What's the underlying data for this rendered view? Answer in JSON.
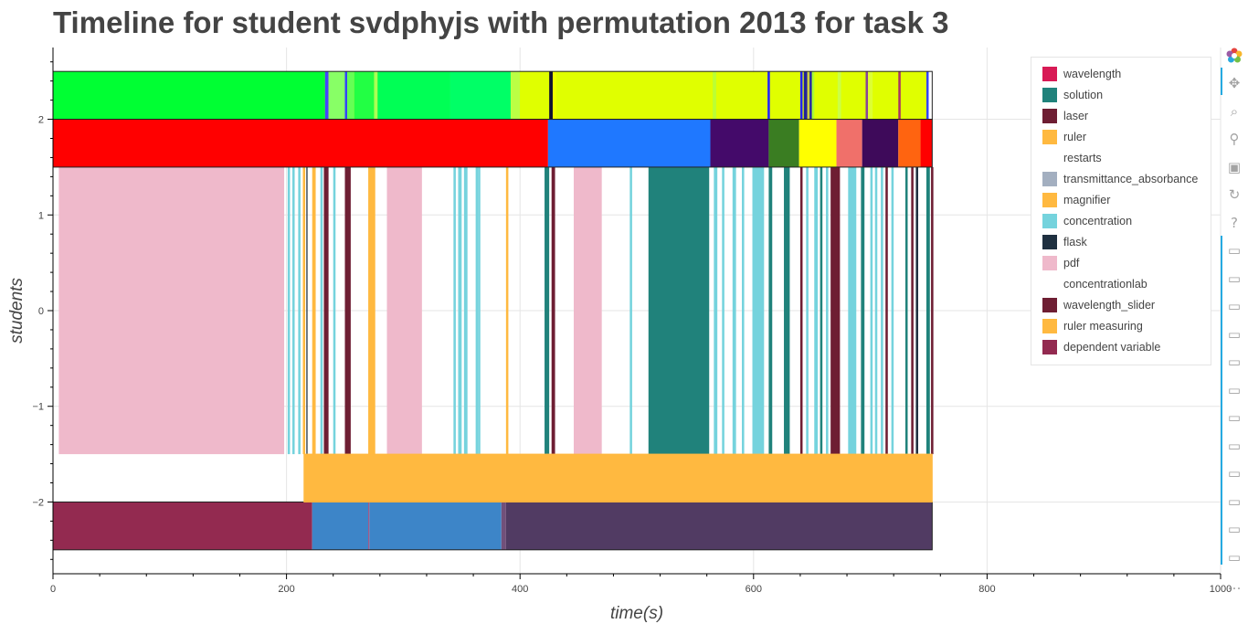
{
  "chart_data": {
    "type": "timeline",
    "title": "Timeline for student svdphyjs with permutation 2013 for task 3",
    "xlabel": "time(s)",
    "ylabel": "students",
    "xlim": [
      0,
      1000
    ],
    "ylim": [
      -2.75,
      2.75
    ],
    "xticks": [
      0,
      200,
      400,
      600,
      800,
      1000
    ],
    "xtick_labels": [
      "0",
      "200",
      "400",
      "600",
      "800",
      "1000"
    ],
    "yticks": [
      -2,
      -1,
      0,
      1,
      2
    ],
    "ytick_labels": [
      "−2",
      "−1",
      "0",
      "1",
      "2"
    ],
    "grid": true,
    "legend_position": "top-right",
    "tracks": [
      {
        "row": 2.25,
        "height": 0.5,
        "background": "#e0ff00",
        "segments": [
          [
            0,
            233,
            "#00ff33"
          ],
          [
            233,
            236,
            "#4444ff"
          ],
          [
            236,
            250,
            "#88ff66"
          ],
          [
            250,
            252,
            "#3344ff"
          ],
          [
            252,
            258,
            "#66ff55"
          ],
          [
            258,
            275,
            "#22ff44"
          ],
          [
            275,
            278,
            "#aaff55"
          ],
          [
            278,
            340,
            "#00ff55"
          ],
          [
            340,
            392,
            "#00ff66"
          ],
          [
            392,
            400,
            "#bbff44"
          ],
          [
            400,
            425,
            "#e0ff00"
          ],
          [
            425,
            428,
            "#111133"
          ],
          [
            428,
            431,
            "#eeff00"
          ],
          [
            565,
            568,
            "#bbff33"
          ],
          [
            612,
            614,
            "#2222ff"
          ],
          [
            640,
            642,
            "#2222ff"
          ],
          [
            643,
            646,
            "#222299"
          ],
          [
            646,
            648,
            "#cccc44"
          ],
          [
            648,
            650,
            "#2222aa"
          ],
          [
            650,
            652,
            "#aaff33"
          ],
          [
            672,
            675,
            "#ccff44"
          ],
          [
            696,
            698,
            "#884499"
          ],
          [
            698,
            702,
            "#ddff33"
          ],
          [
            724,
            726,
            "#aa3366"
          ],
          [
            748,
            750,
            "#3344ff"
          ]
        ]
      },
      {
        "row": 1.75,
        "height": 0.5,
        "segments": [
          [
            0,
            424,
            "#ff0000"
          ],
          [
            424,
            563,
            "#1f78ff"
          ],
          [
            563,
            613,
            "#440a6a"
          ],
          [
            613,
            639,
            "#3a7d22"
          ],
          [
            639,
            671,
            "#ffff00"
          ],
          [
            671,
            693,
            "#f0706a"
          ],
          [
            693,
            724,
            "#3e0a5a"
          ],
          [
            724,
            743,
            "#ff6410"
          ],
          [
            743,
            753,
            "#ff0000"
          ]
        ]
      },
      {
        "row": 0,
        "height": 3.0,
        "segments": [
          [
            5,
            198,
            "#efb9cb"
          ],
          [
            201,
            203,
            "#75d3dd"
          ],
          [
            205,
            207,
            "#75d3dd"
          ],
          [
            210,
            212,
            "#75d3dd"
          ],
          [
            214,
            216,
            "#ffb940"
          ],
          [
            217,
            218,
            "#1f3040"
          ],
          [
            222,
            225,
            "#ffb940"
          ],
          [
            229,
            231,
            "#75d3dd"
          ],
          [
            232,
            236,
            "#6e1e33"
          ],
          [
            240,
            242,
            "#75d3dd"
          ],
          [
            250,
            255,
            "#6e1e33"
          ],
          [
            270,
            276,
            "#ffb940"
          ],
          [
            286,
            316,
            "#efb9cb"
          ],
          [
            343,
            345,
            "#75d3dd"
          ],
          [
            347,
            350,
            "#75d3dd"
          ],
          [
            352,
            355,
            "#75d3dd"
          ],
          [
            362,
            364,
            "#75d3dd"
          ],
          [
            364,
            366,
            "#75d3dd"
          ],
          [
            388,
            390,
            "#ffb940"
          ],
          [
            421,
            425,
            "#20827b"
          ],
          [
            427,
            430,
            "#6e1e33"
          ],
          [
            446,
            470,
            "#efb9cb"
          ],
          [
            494,
            496,
            "#75d3dd"
          ],
          [
            510,
            562,
            "#20827b"
          ],
          [
            566,
            569,
            "#75d3dd"
          ],
          [
            573,
            575,
            "#75d3dd"
          ],
          [
            582,
            585,
            "#75d3dd"
          ],
          [
            590,
            592,
            "#75d3dd"
          ],
          [
            599,
            609,
            "#75d3dd"
          ],
          [
            613,
            616,
            "#20827b"
          ],
          [
            626,
            631,
            "#20827b"
          ],
          [
            640,
            642,
            "#6e1e33"
          ],
          [
            645,
            647,
            "#75d3dd"
          ],
          [
            652,
            655,
            "#75d3dd"
          ],
          [
            657,
            659,
            "#20827b"
          ],
          [
            662,
            664,
            "#75d3dd"
          ],
          [
            666,
            674,
            "#6e1e33"
          ],
          [
            681,
            688,
            "#75d3dd"
          ],
          [
            692,
            695,
            "#20827b"
          ],
          [
            700,
            702,
            "#75d3dd"
          ],
          [
            704,
            706,
            "#75d3dd"
          ],
          [
            709,
            711,
            "#75d3dd"
          ],
          [
            713,
            715,
            "#6e1e33"
          ],
          [
            718,
            720,
            "#75d3dd"
          ],
          [
            730,
            732,
            "#20827b"
          ],
          [
            735,
            737,
            "#6e1e33"
          ],
          [
            739,
            741,
            "#1f3040"
          ],
          [
            748,
            751,
            "#20827b"
          ],
          [
            752,
            754,
            "#6e1e33"
          ]
        ]
      },
      {
        "row": -1.75,
        "height": 0.5,
        "segments": [
          [
            215,
            753,
            "#ffb940"
          ]
        ]
      },
      {
        "row": -2.25,
        "height": 0.5,
        "segments": [
          [
            0,
            222,
            "#932a50"
          ],
          [
            222,
            270,
            "#3d85c8"
          ],
          [
            270,
            271,
            "#a05080"
          ],
          [
            271,
            384,
            "#3d85c8"
          ],
          [
            384,
            388,
            "#72507a"
          ],
          [
            388,
            753,
            "#513b63"
          ]
        ]
      }
    ],
    "legend": [
      {
        "label": "wavelength",
        "color": "#d81a55"
      },
      {
        "label": "solution",
        "color": "#20827b"
      },
      {
        "label": "laser",
        "color": "#6e1e33"
      },
      {
        "label": "ruler",
        "color": "#ffb940"
      },
      {
        "label": "restarts",
        "color": "#ffffff"
      },
      {
        "label": "transmittance_absorbance",
        "color": "#a3afc0"
      },
      {
        "label": "magnifier",
        "color": "#ffb940"
      },
      {
        "label": "concentration",
        "color": "#75d3dd"
      },
      {
        "label": "flask",
        "color": "#1f3040"
      },
      {
        "label": "pdf",
        "color": "#efb9cb"
      },
      {
        "label": "concentrationlab",
        "color": "#ffffff"
      },
      {
        "label": "wavelength_slider",
        "color": "#6e1e33"
      },
      {
        "label": "ruler measuring",
        "color": "#ffb940"
      },
      {
        "label": "dependent variable",
        "color": "#932a50"
      }
    ]
  },
  "toolbar": {
    "logo_icon": "bokeh-logo-icon",
    "tools": [
      {
        "icon": "pan-icon",
        "glyph": "✥"
      },
      {
        "icon": "box-zoom-icon",
        "glyph": "⌕"
      },
      {
        "icon": "wheel-zoom-icon",
        "glyph": "⚲"
      },
      {
        "icon": "save-icon",
        "glyph": "▣"
      },
      {
        "icon": "reset-icon",
        "glyph": "↻"
      },
      {
        "icon": "help-icon",
        "glyph": "?"
      },
      {
        "icon": "hover-icon",
        "glyph": "▭"
      },
      {
        "icon": "hover-icon",
        "glyph": "▭"
      },
      {
        "icon": "hover-icon",
        "glyph": "▭"
      },
      {
        "icon": "hover-icon",
        "glyph": "▭"
      },
      {
        "icon": "hover-icon",
        "glyph": "▭"
      },
      {
        "icon": "hover-icon",
        "glyph": "▭"
      },
      {
        "icon": "hover-icon",
        "glyph": "▭"
      },
      {
        "icon": "hover-icon",
        "glyph": "▭"
      },
      {
        "icon": "hover-icon",
        "glyph": "▭"
      },
      {
        "icon": "hover-icon",
        "glyph": "▭"
      },
      {
        "icon": "hover-icon",
        "glyph": "▭"
      },
      {
        "icon": "hover-icon",
        "glyph": "▭"
      },
      {
        "icon": "more-icon",
        "glyph": "…"
      }
    ]
  }
}
